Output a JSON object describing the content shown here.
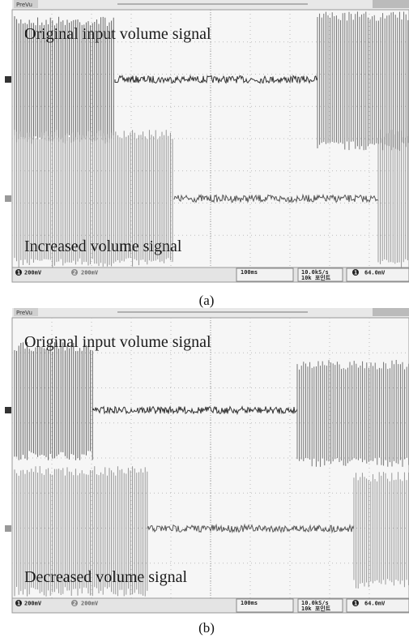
{
  "panels": [
    {
      "header": "PreVu",
      "top_label": "Original input volume signal",
      "bottom_label": "Increased volume signal",
      "status": {
        "ch1": "1",
        "ch1_scale": "200mV",
        "ch2": "2",
        "ch2_scale": "200mV",
        "timebase": "100ms",
        "sample_rate": "10.0kS/s",
        "record_length": "10k 포인트",
        "trigger_channel": "1",
        "trigger": "64.0mV"
      },
      "caption": "(a)"
    },
    {
      "header": "PreVu",
      "top_label": "Original input volume signal",
      "bottom_label": "Decreased volume signal",
      "status": {
        "ch1": "1",
        "ch1_scale": "200mV",
        "ch2": "2",
        "ch2_scale": "200mV",
        "timebase": "100ms",
        "sample_rate": "10.0kS/s",
        "record_length": "10k 포인트",
        "trigger_channel": "1",
        "trigger": "64.0mV"
      },
      "caption": "(b)"
    }
  ]
}
